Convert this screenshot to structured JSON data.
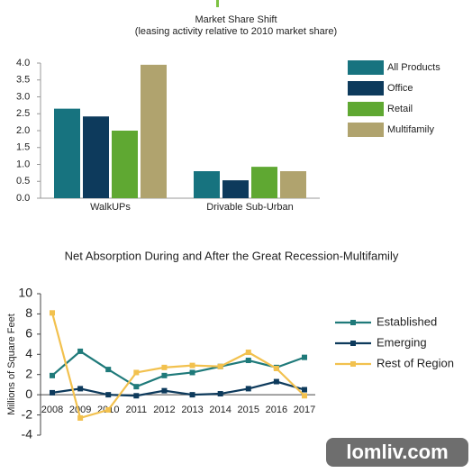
{
  "chart_data": [
    {
      "type": "bar",
      "title": "Market Share Shift",
      "subtitle": "(leasing activity relative to 2010 market share)",
      "categories": [
        "WalkUPs",
        "Drivable Sub-Urban"
      ],
      "series": [
        {
          "name": "All Products",
          "color": "#17737f",
          "values": [
            2.65,
            0.8
          ]
        },
        {
          "name": "Office",
          "color": "#0d3a5c",
          "values": [
            2.42,
            0.53
          ]
        },
        {
          "name": "Retail",
          "color": "#5fa832",
          "values": [
            2.0,
            0.93
          ]
        },
        {
          "name": "Multifamily",
          "color": "#b0a36e",
          "values": [
            3.95,
            0.8
          ]
        }
      ],
      "ylim": [
        0,
        4
      ],
      "yticks": [
        {
          "value": 0,
          "label": "0.0"
        },
        {
          "value": 0.5,
          "label": "0.5"
        },
        {
          "value": 1,
          "label": "1.0"
        },
        {
          "value": 1.5,
          "label": "1.5"
        },
        {
          "value": 2,
          "label": "2.0"
        },
        {
          "value": 2.5,
          "label": "2.5"
        },
        {
          "value": 3,
          "label": "3.0"
        },
        {
          "value": 3.5,
          "label": "3.5"
        },
        {
          "value": 4,
          "label": "4.0"
        }
      ],
      "legend": "right"
    },
    {
      "type": "line",
      "title": "Net Absorption During and After the Great Recession-Multifamily",
      "y_label": "Millions of Square Feet",
      "categories": [
        "2008",
        "2009",
        "2010",
        "2011",
        "2012",
        "2013",
        "2014",
        "2015",
        "2016",
        "2017"
      ],
      "series": [
        {
          "name": "Established",
          "color": "#1f7a7a",
          "values": [
            1.9,
            4.3,
            2.5,
            0.8,
            1.9,
            2.2,
            2.8,
            3.4,
            2.7,
            3.7
          ]
        },
        {
          "name": "Emerging",
          "color": "#0d3a5c",
          "values": [
            0.2,
            0.6,
            0.0,
            -0.1,
            0.4,
            0.0,
            0.1,
            0.6,
            1.3,
            0.5
          ]
        },
        {
          "name": "Rest of Region",
          "color": "#f2c14e",
          "values": [
            8.1,
            -2.3,
            -1.5,
            2.2,
            2.7,
            2.9,
            2.8,
            4.2,
            2.6,
            -0.1
          ]
        }
      ],
      "ylim": [
        -4,
        10
      ],
      "yticks": [
        -4,
        -2,
        0,
        2,
        4,
        6,
        8,
        10
      ],
      "legend": "right"
    }
  ],
  "watermark": "lomliv.com"
}
